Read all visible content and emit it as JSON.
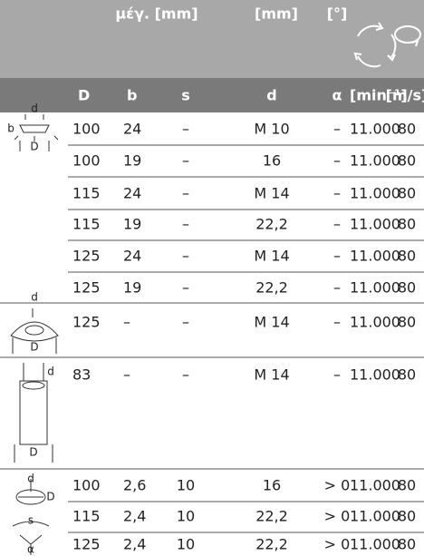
{
  "header": {
    "labels": [
      "μέγ. [mm]",
      "[mm]",
      "[°]"
    ],
    "columns": [
      "D",
      "b",
      "s",
      "d",
      "α",
      "[min⁻¹]",
      "[m/s]"
    ]
  },
  "groups": [
    {
      "icon_labels": [
        "d",
        "b",
        "D"
      ],
      "rows": [
        [
          "100",
          "24",
          "–",
          "M 10",
          "–",
          "11.000",
          "80"
        ],
        [
          "100",
          "19",
          "–",
          "16",
          "–",
          "11.000",
          "80"
        ],
        [
          "115",
          "24",
          "–",
          "M 14",
          "–",
          "11.000",
          "80"
        ],
        [
          "115",
          "19",
          "–",
          "22,2",
          "–",
          "11.000",
          "80"
        ],
        [
          "125",
          "24",
          "–",
          "M 14",
          "–",
          "11.000",
          "80"
        ],
        [
          "125",
          "19",
          "–",
          "22,2",
          "–",
          "11.000",
          "80"
        ]
      ]
    },
    {
      "icon_labels": [
        "d",
        "D"
      ],
      "rows": [
        [
          "125",
          "–",
          "–",
          "M 14",
          "–",
          "11.000",
          "80"
        ]
      ]
    },
    {
      "icon_labels": [
        "d",
        "D"
      ],
      "rows": [
        [
          "83",
          "–",
          "–",
          "M 14",
          "–",
          "11.000",
          "80"
        ]
      ]
    },
    {
      "icon_labels": [
        "d",
        "D",
        "s",
        "α"
      ],
      "rows": [
        [
          "100",
          "2,6",
          "10",
          "16",
          "> 0",
          "11.000",
          "80"
        ],
        [
          "115",
          "2,4",
          "10",
          "22,2",
          "> 0",
          "11.000",
          "80"
        ],
        [
          "125",
          "2,4",
          "10",
          "22,2",
          "> 0",
          "11.000",
          "80"
        ]
      ]
    }
  ]
}
